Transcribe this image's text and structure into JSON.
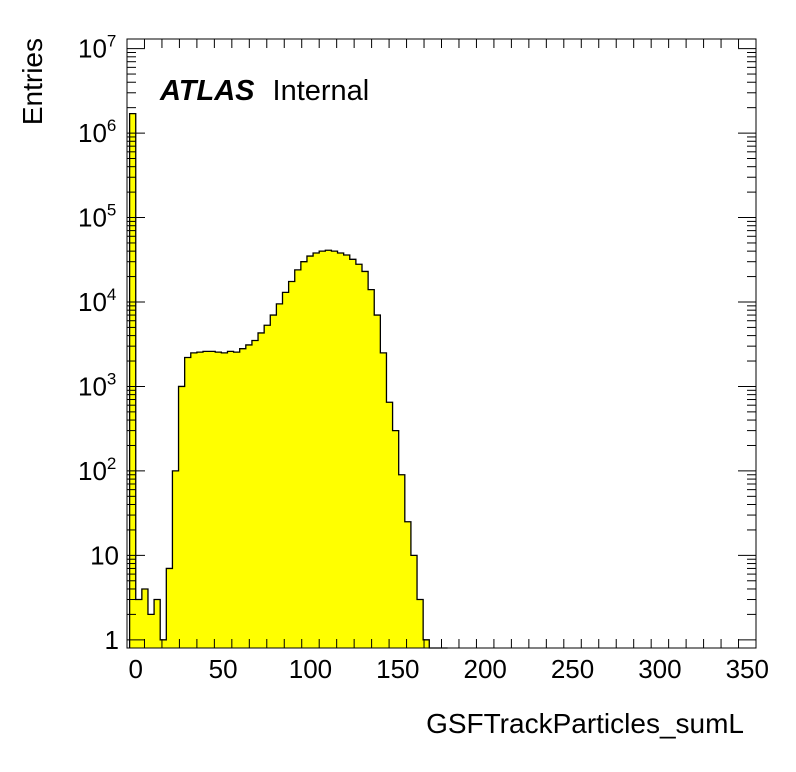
{
  "chart_data": {
    "type": "bar",
    "title": "",
    "xlabel": "GSFTrackParticles_sumL",
    "ylabel": "Entries",
    "xlim": [
      -5,
      355
    ],
    "ylim": [
      0.8,
      13000000
    ],
    "yscale": "log",
    "bin_width": 3.5,
    "x_ticks": [
      "0",
      "50",
      "100",
      "150",
      "200",
      "250",
      "300",
      "350"
    ],
    "y_ticks": [
      {
        "value": 1,
        "base": "1",
        "exp": ""
      },
      {
        "value": 10,
        "base": "10",
        "exp": ""
      },
      {
        "value": 100,
        "base": "10",
        "exp": "2"
      },
      {
        "value": 1000,
        "base": "10",
        "exp": "3"
      },
      {
        "value": 10000,
        "base": "10",
        "exp": "4"
      },
      {
        "value": 100000,
        "base": "10",
        "exp": "5"
      },
      {
        "value": 1000000,
        "base": "10",
        "exp": "6"
      },
      {
        "value": 10000000,
        "base": "10",
        "exp": "7"
      }
    ],
    "fill_color": "#ffff00",
    "line_color": "#000000",
    "label": {
      "bold": "ATLAS",
      "normal": "Internal"
    },
    "series": [
      {
        "x": [
          -3.5,
          0,
          3.5,
          7,
          10.5,
          14,
          17.5,
          21,
          24.5,
          28,
          31.5,
          35,
          38.5,
          42,
          45.5,
          49,
          52.5,
          56,
          59.5,
          63,
          66.5,
          70,
          73.5,
          77,
          80.5,
          84,
          87.5,
          91,
          94.5,
          98,
          101.5,
          105,
          108.5,
          112,
          115.5,
          119,
          122.5,
          126,
          129.5,
          133,
          136.5,
          140,
          143.5,
          147,
          150.5,
          154,
          157.5,
          161,
          164.5,
          168,
          171.5,
          175
        ],
        "values": [
          1700000,
          3,
          4,
          2,
          3,
          1,
          7,
          100,
          1000,
          2200,
          2500,
          2550,
          2600,
          2600,
          2550,
          2500,
          2600,
          2550,
          2800,
          3100,
          3500,
          4300,
          5300,
          7000,
          9500,
          13000,
          17500,
          24000,
          30000,
          35000,
          38000,
          40000,
          41000,
          40000,
          38000,
          36000,
          32000,
          28000,
          23000,
          14000,
          7000,
          2500,
          650,
          300,
          90,
          25,
          10,
          3,
          1,
          0,
          0,
          0
        ]
      }
    ]
  }
}
